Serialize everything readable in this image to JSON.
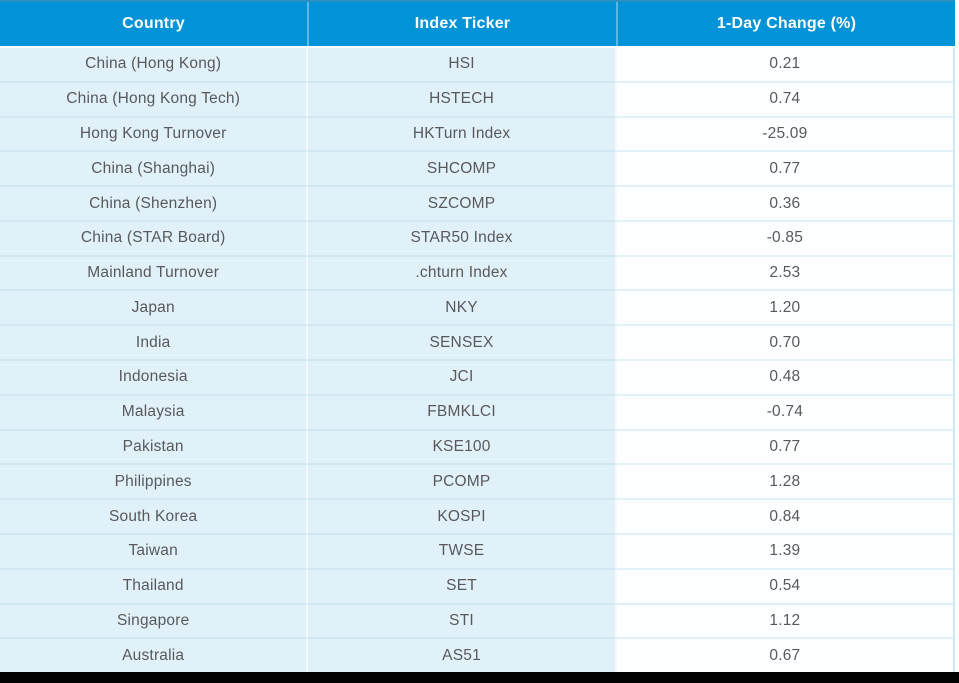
{
  "chart_data": {
    "type": "table",
    "columns": [
      "Country",
      "Index Ticker",
      "1-Day Change (%)"
    ],
    "rows": [
      {
        "country": "China (Hong Kong)",
        "ticker": "HSI",
        "change": "0.21"
      },
      {
        "country": "China (Hong Kong Tech)",
        "ticker": "HSTECH",
        "change": "0.74"
      },
      {
        "country": "Hong Kong Turnover",
        "ticker": "HKTurn Index",
        "change": "-25.09"
      },
      {
        "country": "China (Shanghai)",
        "ticker": "SHCOMP",
        "change": "0.77"
      },
      {
        "country": "China (Shenzhen)",
        "ticker": "SZCOMP",
        "change": "0.36"
      },
      {
        "country": "China (STAR Board)",
        "ticker": "STAR50 Index",
        "change": "-0.85"
      },
      {
        "country": "Mainland Turnover",
        "ticker": ".chturn Index",
        "change": "2.53"
      },
      {
        "country": "Japan",
        "ticker": "NKY",
        "change": "1.20"
      },
      {
        "country": "India",
        "ticker": "SENSEX",
        "change": "0.70"
      },
      {
        "country": "Indonesia",
        "ticker": "JCI",
        "change": "0.48"
      },
      {
        "country": "Malaysia",
        "ticker": "FBMKLCI",
        "change": "-0.74"
      },
      {
        "country": "Pakistan",
        "ticker": "KSE100",
        "change": "0.77"
      },
      {
        "country": "Philippines",
        "ticker": "PCOMP",
        "change": "1.28"
      },
      {
        "country": "South Korea",
        "ticker": "KOSPI",
        "change": "0.84"
      },
      {
        "country": "Taiwan",
        "ticker": "TWSE",
        "change": "1.39"
      },
      {
        "country": "Thailand",
        "ticker": "SET",
        "change": "0.54"
      },
      {
        "country": "Singapore",
        "ticker": "STI",
        "change": "1.12"
      },
      {
        "country": "Australia",
        "ticker": "AS51",
        "change": "0.67"
      }
    ]
  },
  "header": {
    "col_country": "Country",
    "col_ticker": "Index Ticker",
    "col_change": "1-Day Change (%)"
  },
  "colors": {
    "header_bg": "#0093d8",
    "header_text": "#ffffff",
    "accent_border": "#2b90c2",
    "row_bg": "#e1f1f9",
    "value_bg": "#fdfeff",
    "text": "#58595b",
    "bottom_bar": "#010101"
  }
}
